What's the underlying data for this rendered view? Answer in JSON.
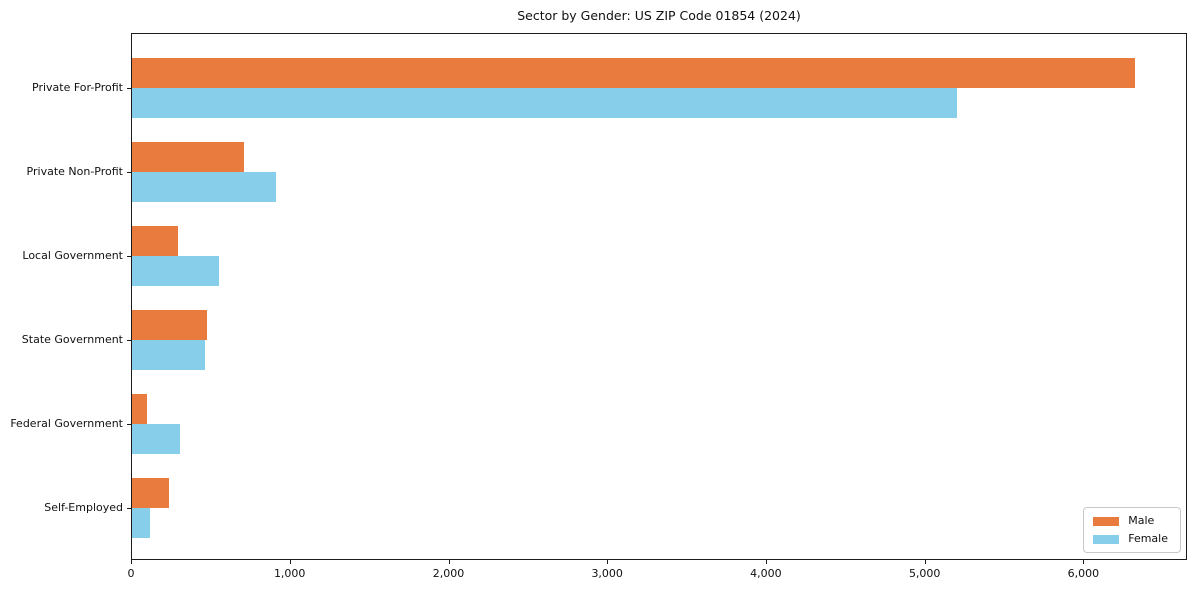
{
  "chart_data": {
    "type": "bar",
    "orientation": "horizontal",
    "title": "Sector by Gender: US ZIP Code 01854 (2024)",
    "categories": [
      "Private For-Profit",
      "Private Non-Profit",
      "Local Government",
      "State Government",
      "Federal Government",
      "Self-Employed"
    ],
    "series": [
      {
        "name": "Male",
        "color": "#E87B3D",
        "values": [
          6320,
          705,
          290,
          475,
          95,
          235
        ]
      },
      {
        "name": "Female",
        "color": "#87CEEB",
        "values": [
          5200,
          910,
          550,
          460,
          300,
          110
        ]
      }
    ],
    "xlabel": "",
    "ylabel": "",
    "xlim": [
      0,
      6640
    ],
    "xticks": [
      0,
      1000,
      2000,
      3000,
      4000,
      5000,
      6000
    ],
    "xtick_labels": [
      "0",
      "1,000",
      "2,000",
      "3,000",
      "4,000",
      "5,000",
      "6,000"
    ],
    "grid": false,
    "legend": {
      "position": "lower right"
    },
    "background": "#ffffff",
    "spine_color": "#1c1c1c"
  }
}
